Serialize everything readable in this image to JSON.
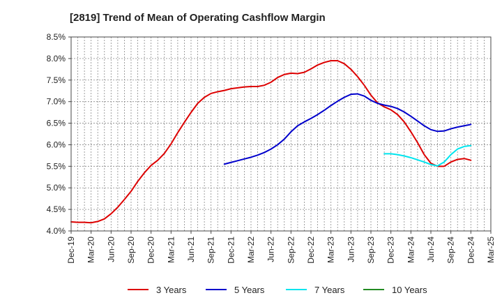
{
  "chart_data": {
    "type": "line",
    "title": "[2819]  Trend of Mean of Operating Cashflow Margin",
    "xlabel": "",
    "ylabel": "",
    "ylim": [
      4.0,
      8.5
    ],
    "y_ticks": [
      "4.0%",
      "4.5%",
      "5.0%",
      "5.5%",
      "6.0%",
      "6.5%",
      "7.0%",
      "7.5%",
      "8.0%",
      "8.5%"
    ],
    "x_ticks": [
      "Dec-19",
      "Mar-20",
      "Jun-20",
      "Sep-20",
      "Dec-20",
      "Mar-21",
      "Jun-21",
      "Sep-21",
      "Dec-21",
      "Mar-22",
      "Jun-22",
      "Sep-22",
      "Dec-22",
      "Mar-23",
      "Jun-23",
      "Sep-23",
      "Dec-23",
      "Mar-24",
      "Jun-24",
      "Sep-24",
      "Dec-24",
      "Mar-25"
    ],
    "grid": true,
    "legend_position": "bottom",
    "series": [
      {
        "name": "3 Years",
        "color": "#dd0000",
        "points": [
          [
            "2019-12",
            4.21
          ],
          [
            "2020-01",
            4.2
          ],
          [
            "2020-02",
            4.2
          ],
          [
            "2020-03",
            4.19
          ],
          [
            "2020-04",
            4.22
          ],
          [
            "2020-05",
            4.28
          ],
          [
            "2020-06",
            4.4
          ],
          [
            "2020-07",
            4.55
          ],
          [
            "2020-08",
            4.73
          ],
          [
            "2020-09",
            4.92
          ],
          [
            "2020-10",
            5.15
          ],
          [
            "2020-11",
            5.35
          ],
          [
            "2020-12",
            5.52
          ],
          [
            "2021-01",
            5.64
          ],
          [
            "2021-02",
            5.8
          ],
          [
            "2021-03",
            6.02
          ],
          [
            "2021-04",
            6.28
          ],
          [
            "2021-05",
            6.52
          ],
          [
            "2021-06",
            6.75
          ],
          [
            "2021-07",
            6.96
          ],
          [
            "2021-08",
            7.1
          ],
          [
            "2021-09",
            7.19
          ],
          [
            "2021-10",
            7.23
          ],
          [
            "2021-11",
            7.26
          ],
          [
            "2021-12",
            7.3
          ],
          [
            "2022-01",
            7.32
          ],
          [
            "2022-02",
            7.34
          ],
          [
            "2022-03",
            7.35
          ],
          [
            "2022-04",
            7.35
          ],
          [
            "2022-05",
            7.38
          ],
          [
            "2022-06",
            7.45
          ],
          [
            "2022-07",
            7.56
          ],
          [
            "2022-08",
            7.63
          ],
          [
            "2022-09",
            7.66
          ],
          [
            "2022-10",
            7.65
          ],
          [
            "2022-11",
            7.68
          ],
          [
            "2022-12",
            7.76
          ],
          [
            "2023-01",
            7.85
          ],
          [
            "2023-02",
            7.91
          ],
          [
            "2023-03",
            7.95
          ],
          [
            "2023-04",
            7.95
          ],
          [
            "2023-05",
            7.88
          ],
          [
            "2023-06",
            7.75
          ],
          [
            "2023-07",
            7.58
          ],
          [
            "2023-08",
            7.38
          ],
          [
            "2023-09",
            7.15
          ],
          [
            "2023-10",
            6.97
          ],
          [
            "2023-11",
            6.88
          ],
          [
            "2023-12",
            6.81
          ],
          [
            "2024-01",
            6.7
          ],
          [
            "2024-02",
            6.53
          ],
          [
            "2024-03",
            6.3
          ],
          [
            "2024-04",
            6.05
          ],
          [
            "2024-05",
            5.77
          ],
          [
            "2024-06",
            5.57
          ],
          [
            "2024-07",
            5.5
          ],
          [
            "2024-08",
            5.5
          ],
          [
            "2024-09",
            5.6
          ],
          [
            "2024-10",
            5.66
          ],
          [
            "2024-11",
            5.68
          ],
          [
            "2024-12",
            5.64
          ]
        ]
      },
      {
        "name": "5 Years",
        "color": "#0000cc",
        "points": [
          [
            "2021-11",
            5.55
          ],
          [
            "2021-12",
            5.59
          ],
          [
            "2022-01",
            5.63
          ],
          [
            "2022-02",
            5.67
          ],
          [
            "2022-03",
            5.71
          ],
          [
            "2022-04",
            5.76
          ],
          [
            "2022-05",
            5.82
          ],
          [
            "2022-06",
            5.9
          ],
          [
            "2022-07",
            6.0
          ],
          [
            "2022-08",
            6.13
          ],
          [
            "2022-09",
            6.3
          ],
          [
            "2022-10",
            6.44
          ],
          [
            "2022-11",
            6.53
          ],
          [
            "2022-12",
            6.61
          ],
          [
            "2023-01",
            6.7
          ],
          [
            "2023-02",
            6.8
          ],
          [
            "2023-03",
            6.91
          ],
          [
            "2023-04",
            7.01
          ],
          [
            "2023-05",
            7.1
          ],
          [
            "2023-06",
            7.17
          ],
          [
            "2023-07",
            7.18
          ],
          [
            "2023-08",
            7.13
          ],
          [
            "2023-09",
            7.03
          ],
          [
            "2023-10",
            6.96
          ],
          [
            "2023-11",
            6.92
          ],
          [
            "2023-12",
            6.89
          ],
          [
            "2024-01",
            6.84
          ],
          [
            "2024-02",
            6.76
          ],
          [
            "2024-03",
            6.66
          ],
          [
            "2024-04",
            6.55
          ],
          [
            "2024-05",
            6.44
          ],
          [
            "2024-06",
            6.35
          ],
          [
            "2024-07",
            6.31
          ],
          [
            "2024-08",
            6.32
          ],
          [
            "2024-09",
            6.37
          ],
          [
            "2024-10",
            6.41
          ],
          [
            "2024-11",
            6.44
          ],
          [
            "2024-12",
            6.47
          ]
        ]
      },
      {
        "name": "7 Years",
        "color": "#00e5ee",
        "points": [
          [
            "2023-11",
            5.79
          ],
          [
            "2023-12",
            5.79
          ],
          [
            "2024-01",
            5.77
          ],
          [
            "2024-02",
            5.74
          ],
          [
            "2024-03",
            5.7
          ],
          [
            "2024-04",
            5.65
          ],
          [
            "2024-05",
            5.6
          ],
          [
            "2024-06",
            5.54
          ],
          [
            "2024-07",
            5.51
          ],
          [
            "2024-08",
            5.6
          ],
          [
            "2024-09",
            5.77
          ],
          [
            "2024-10",
            5.9
          ],
          [
            "2024-11",
            5.96
          ],
          [
            "2024-12",
            5.98
          ]
        ]
      },
      {
        "name": "10 Years",
        "color": "#228b22",
        "points": []
      }
    ]
  }
}
